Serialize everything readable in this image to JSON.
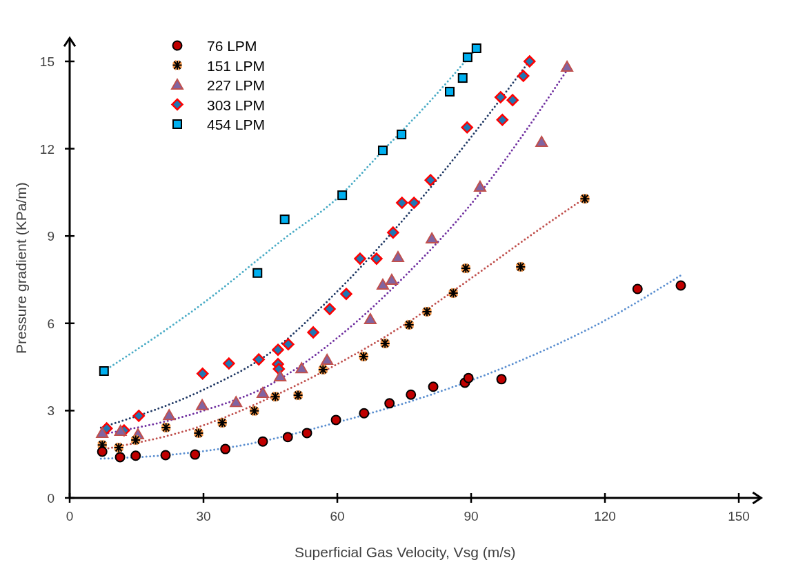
{
  "chart_data": {
    "type": "scatter",
    "xlabel": "Superficial Gas Velocity, Vsg (m/s)",
    "ylabel": "Pressure gradient (KPa/m)",
    "xlim": [
      0,
      155
    ],
    "ylim": [
      0,
      15.8
    ],
    "xticks": [
      0,
      30,
      60,
      90,
      120,
      150
    ],
    "yticks": [
      0,
      3,
      6,
      9,
      12,
      15
    ],
    "grid": false,
    "legend": "top left",
    "series": [
      {
        "name": "76 LPM",
        "color": "#c00000",
        "marker": "circle",
        "x": [
          7.3,
          11.3,
          14.8,
          21.5,
          28.1,
          34.9,
          43.3,
          48.9,
          53.2,
          59.7,
          66.0,
          71.7,
          76.5,
          81.5,
          88.6,
          89.4,
          96.8,
          127.3,
          137.0
        ],
        "values": [
          1.59,
          1.4,
          1.45,
          1.47,
          1.49,
          1.68,
          1.94,
          2.09,
          2.23,
          2.68,
          2.91,
          3.25,
          3.55,
          3.82,
          3.96,
          4.12,
          4.08,
          7.18,
          7.3
        ]
      },
      {
        "name": "151 LPM",
        "color": "#f79646",
        "marker": "cross",
        "x": [
          7.3,
          11.0,
          14.8,
          21.6,
          28.9,
          34.2,
          41.4,
          46.1,
          51.2,
          56.8,
          65.9,
          70.7,
          76.1,
          80.1,
          86.0,
          88.8,
          101.1,
          115.5
        ],
        "values": [
          1.82,
          1.73,
          1.99,
          2.42,
          2.23,
          2.58,
          2.99,
          3.48,
          3.53,
          4.41,
          4.86,
          5.31,
          5.95,
          6.4,
          7.04,
          7.89,
          7.94,
          10.28
        ]
      },
      {
        "name": "227 LPM",
        "color": "#8064a2",
        "marker": "triangle",
        "x": [
          7.3,
          11.4,
          15.3,
          22.3,
          29.7,
          37.3,
          43.3,
          47.2,
          52.0,
          57.7,
          67.4,
          70.2,
          72.2,
          73.6,
          81.2,
          92.0,
          105.8,
          111.5
        ],
        "values": [
          2.23,
          2.3,
          2.18,
          2.84,
          3.18,
          3.29,
          3.6,
          4.17,
          4.45,
          4.74,
          6.14,
          7.32,
          7.49,
          8.27,
          8.91,
          10.69,
          12.23,
          14.81
        ]
      },
      {
        "name": "303 LPM",
        "color": "#1f77b4",
        "marker": "diamond",
        "x": [
          8.3,
          12.2,
          15.5,
          29.8,
          35.7,
          42.4,
          46.7,
          46.7,
          46.9,
          49.0,
          54.6,
          58.3,
          62.0,
          65.1,
          68.8,
          72.5,
          74.5,
          77.2,
          80.9,
          89.1,
          97.0,
          96.6,
          99.3,
          101.7,
          103.1
        ],
        "values": [
          2.39,
          2.32,
          2.82,
          4.27,
          4.62,
          4.76,
          5.09,
          4.6,
          4.43,
          5.28,
          5.69,
          6.49,
          7.01,
          8.22,
          8.22,
          9.12,
          10.14,
          10.14,
          10.92,
          12.73,
          12.99,
          13.77,
          13.67,
          14.5,
          15.0
        ]
      },
      {
        "name": "454 LPM",
        "color": "#00b0f0",
        "marker": "square",
        "x": [
          7.7,
          42.1,
          48.2,
          61.1,
          70.2,
          74.4,
          85.2,
          88.1,
          89.2,
          91.2
        ],
        "values": [
          4.36,
          7.73,
          9.57,
          10.4,
          11.94,
          12.49,
          13.96,
          14.43,
          15.14,
          15.45
        ]
      },
      {
        "type": "line",
        "color": "#5b8fd0",
        "line_style": "dotted",
        "x": [
          7,
          20,
          40,
          60,
          80,
          100,
          120,
          137
        ],
        "values": [
          1.35,
          1.45,
          1.85,
          2.6,
          3.5,
          4.65,
          6.1,
          7.65
        ]
      },
      {
        "type": "line",
        "color": "#c0504d",
        "line_style": "dotted",
        "x": [
          7,
          30,
          45,
          60,
          75,
          90,
          105,
          115.5
        ],
        "values": [
          1.66,
          2.5,
          3.45,
          4.6,
          5.95,
          7.55,
          9.2,
          10.3
        ]
      },
      {
        "type": "line",
        "color": "#7030a0",
        "line_style": "dotted",
        "x": [
          7,
          30,
          45,
          60,
          75,
          90,
          111.5
        ],
        "values": [
          2.18,
          3.0,
          3.9,
          5.5,
          7.6,
          10.1,
          14.7
        ]
      },
      {
        "type": "line",
        "color": "#1f3864",
        "line_style": "dotted",
        "x": [
          7,
          30,
          45,
          60,
          75,
          90,
          103
        ],
        "values": [
          2.42,
          3.72,
          5.0,
          7.1,
          9.6,
          12.4,
          15.0
        ]
      },
      {
        "type": "line",
        "color": "#4bacc6",
        "line_style": "dotted",
        "x": [
          7.7,
          30,
          48,
          60,
          70,
          80,
          91.2
        ],
        "values": [
          4.36,
          6.7,
          8.9,
          10.3,
          11.9,
          13.5,
          15.45
        ]
      }
    ]
  }
}
